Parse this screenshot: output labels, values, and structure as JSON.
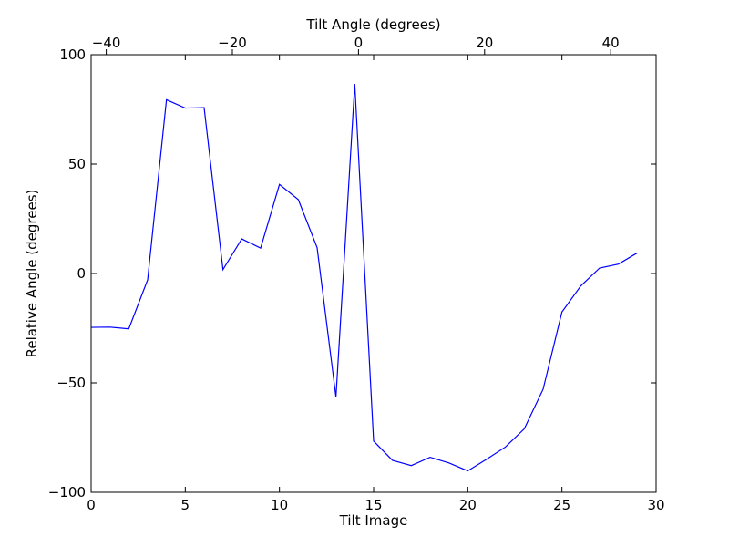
{
  "chart_data": {
    "type": "line",
    "title": "",
    "xlabel": "Tilt Image",
    "ylabel": "Relative Angle (degrees)",
    "top_xlabel": "Tilt Angle (degrees)",
    "xlim": [
      0,
      30
    ],
    "ylim": [
      -100,
      100
    ],
    "top_xlim": [
      -42.4,
      47.2
    ],
    "x_ticks": [
      0,
      5,
      10,
      15,
      20,
      25,
      30
    ],
    "x_tick_labels": [
      "0",
      "5",
      "10",
      "15",
      "20",
      "25",
      "30"
    ],
    "y_ticks": [
      -100,
      -50,
      0,
      50,
      100
    ],
    "y_tick_labels": [
      "−100",
      "−50",
      "0",
      "50",
      "100"
    ],
    "top_x_ticks": [
      -40,
      -20,
      0,
      20,
      40
    ],
    "top_x_tick_labels": [
      "−40",
      "−20",
      "0",
      "20",
      "40"
    ],
    "grid": false,
    "line_color": "#0000ff",
    "series": [
      {
        "x": [
          0,
          1,
          2,
          3,
          4,
          5,
          6,
          7,
          8,
          9,
          10,
          11,
          12,
          13,
          14,
          15,
          16,
          17,
          18,
          19,
          20,
          21,
          22,
          23,
          24,
          25,
          26,
          27,
          28,
          29
        ],
        "values": [
          -24.6,
          -24.5,
          -25.3,
          -2.9,
          79.4,
          75.6,
          75.8,
          1.8,
          15.8,
          11.6,
          40.7,
          33.8,
          11.8,
          -56.5,
          86.6,
          -76.6,
          -85.4,
          -87.8,
          -84.0,
          -86.6,
          -90.2,
          -84.9,
          -79.3,
          -71.0,
          -52.9,
          -17.6,
          -5.7,
          2.5,
          4.3,
          9.4
        ]
      }
    ]
  }
}
